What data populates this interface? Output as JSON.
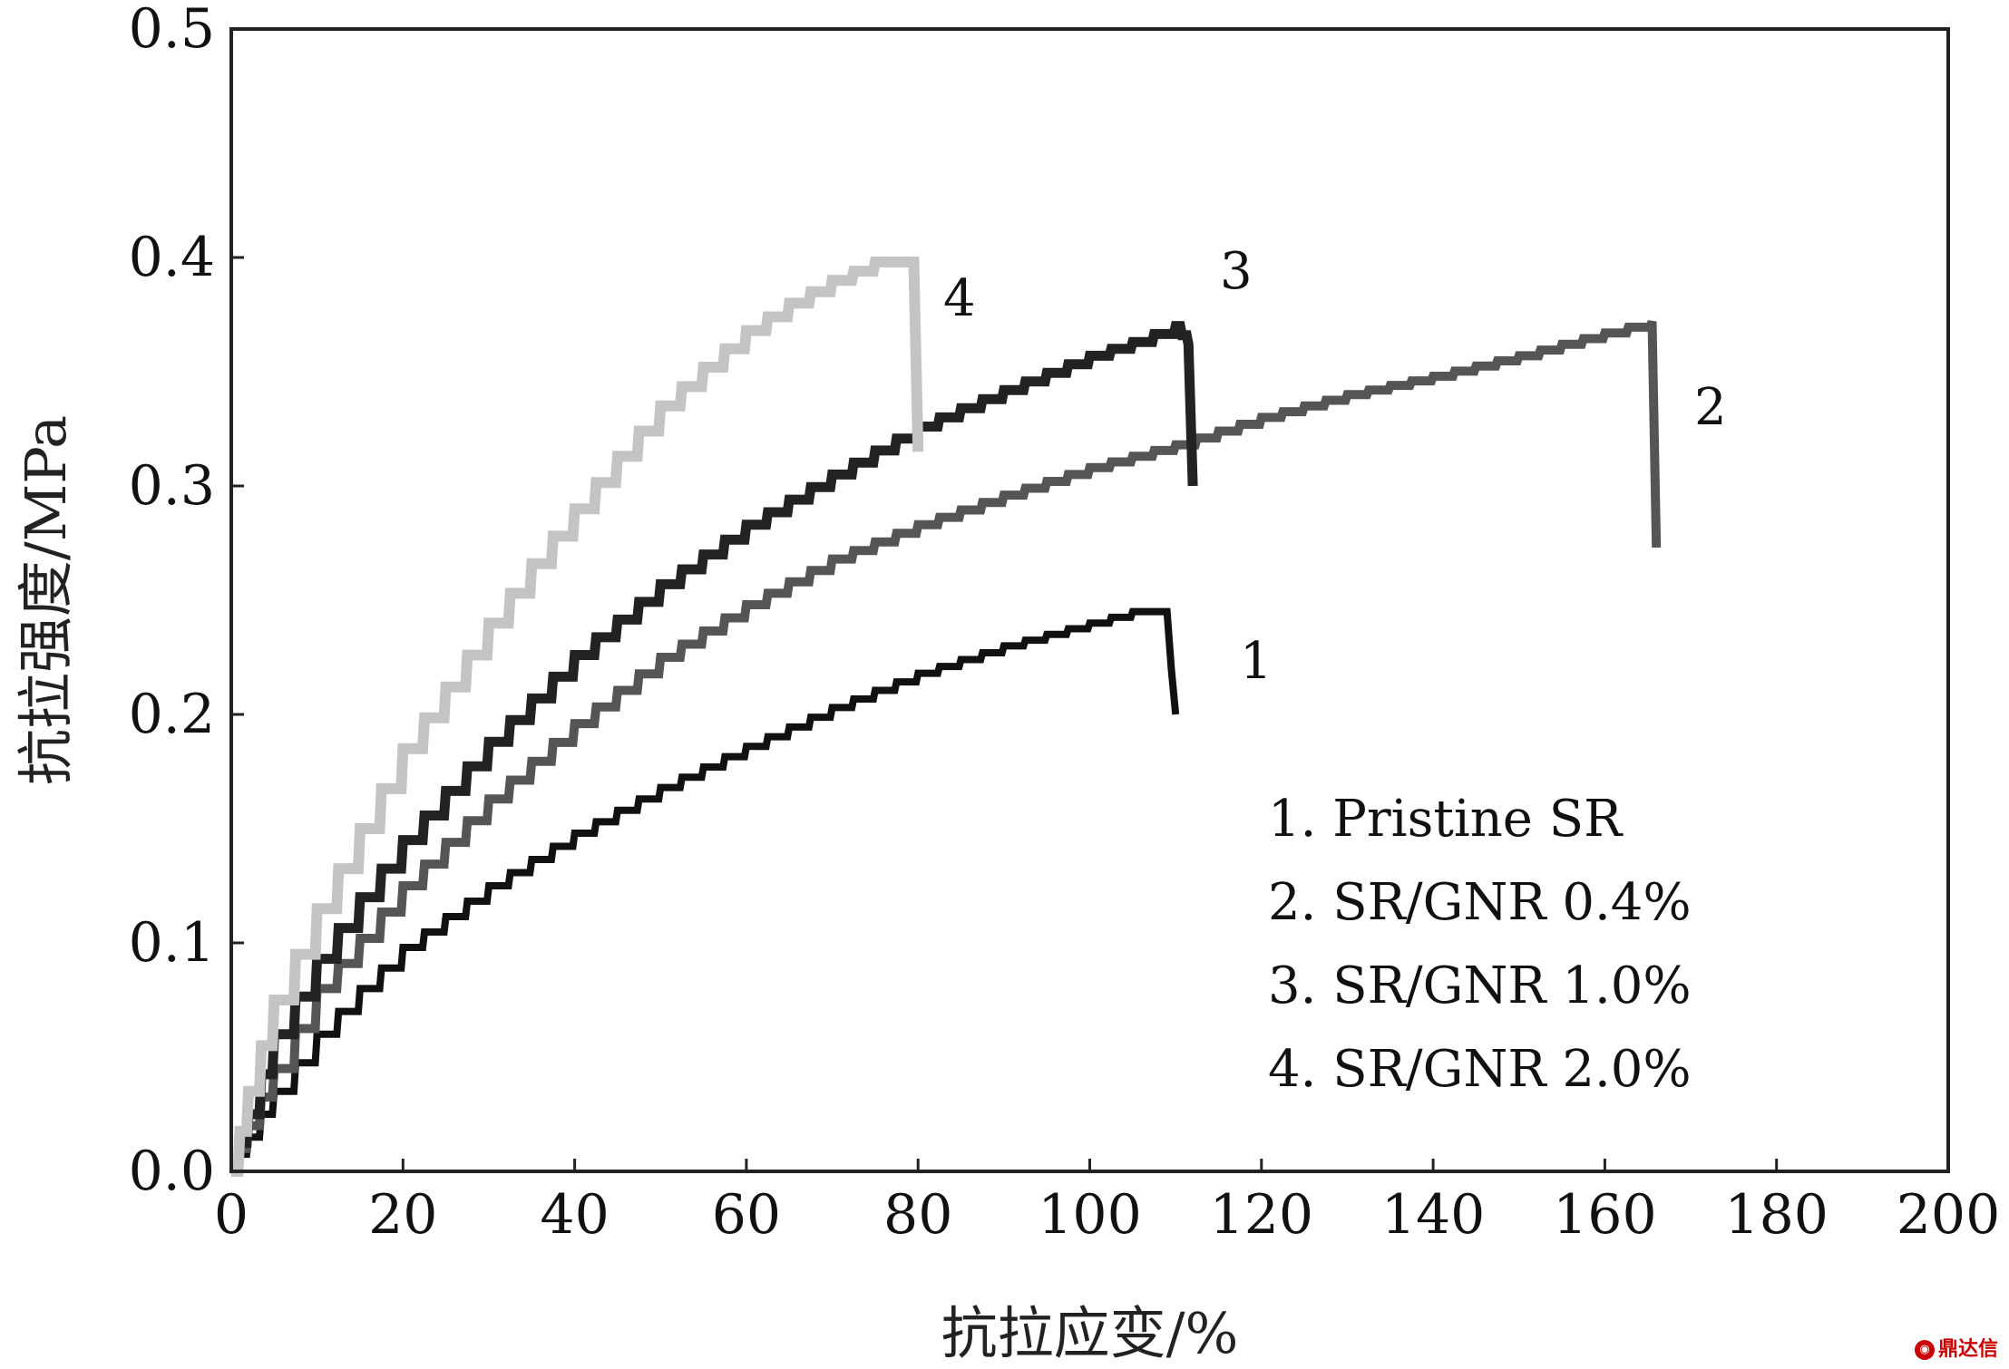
{
  "chart_data": {
    "type": "line",
    "xlabel": "抗拉应变/%",
    "ylabel": "抗拉强度/MPa",
    "xlim": [
      0,
      200
    ],
    "ylim": [
      0,
      0.5
    ],
    "x_ticks": [
      "0",
      "20",
      "40",
      "60",
      "80",
      "100",
      "120",
      "140",
      "160",
      "180",
      "200"
    ],
    "y_ticks": [
      "0.0",
      "0.1",
      "0.2",
      "0.3",
      "0.4",
      "0.5"
    ],
    "grid": false,
    "legend_position": "bottom-right",
    "legend": [
      "1. Pristine SR",
      "2. SR/GNR 0.4%",
      "3. SR/GNR 1.0%",
      "4. SR/GNR 2.0%"
    ],
    "series": [
      {
        "label": "1",
        "color": "#111111",
        "x": [
          0,
          2,
          5,
          10,
          15,
          20,
          30,
          40,
          50,
          60,
          70,
          80,
          90,
          100,
          105,
          109,
          109.5,
          110
        ],
        "y": [
          0,
          0.015,
          0.035,
          0.06,
          0.08,
          0.098,
          0.125,
          0.148,
          0.168,
          0.186,
          0.203,
          0.218,
          0.23,
          0.24,
          0.245,
          0.245,
          0.22,
          0.2
        ]
      },
      {
        "label": "2",
        "color": "#555555",
        "x": [
          0,
          2,
          5,
          10,
          15,
          20,
          30,
          40,
          50,
          60,
          70,
          80,
          90,
          100,
          110,
          120,
          130,
          140,
          150,
          160,
          165.5,
          166
        ],
        "y": [
          0,
          0.02,
          0.045,
          0.08,
          0.102,
          0.125,
          0.163,
          0.196,
          0.225,
          0.248,
          0.268,
          0.283,
          0.296,
          0.308,
          0.318,
          0.33,
          0.34,
          0.348,
          0.357,
          0.367,
          0.372,
          0.273
        ]
      },
      {
        "label": "3",
        "color": "#222222",
        "x": [
          0,
          2,
          5,
          10,
          15,
          20,
          30,
          40,
          50,
          60,
          70,
          80,
          90,
          100,
          105,
          110,
          111.5,
          112
        ],
        "y": [
          0,
          0.025,
          0.06,
          0.093,
          0.12,
          0.145,
          0.188,
          0.226,
          0.257,
          0.283,
          0.305,
          0.326,
          0.342,
          0.357,
          0.363,
          0.37,
          0.362,
          0.3
        ]
      },
      {
        "label": "4",
        "color": "#c4c4c4",
        "x": [
          0,
          2,
          5,
          10,
          15,
          20,
          25,
          30,
          35,
          40,
          45,
          50,
          55,
          60,
          65,
          70,
          75,
          79.5,
          80
        ],
        "y": [
          0,
          0.035,
          0.075,
          0.115,
          0.15,
          0.185,
          0.212,
          0.24,
          0.266,
          0.29,
          0.313,
          0.335,
          0.352,
          0.368,
          0.38,
          0.39,
          0.398,
          0.398,
          0.315
        ]
      }
    ]
  },
  "watermark": "鼎达信",
  "watermark_icon": "logo-icon"
}
